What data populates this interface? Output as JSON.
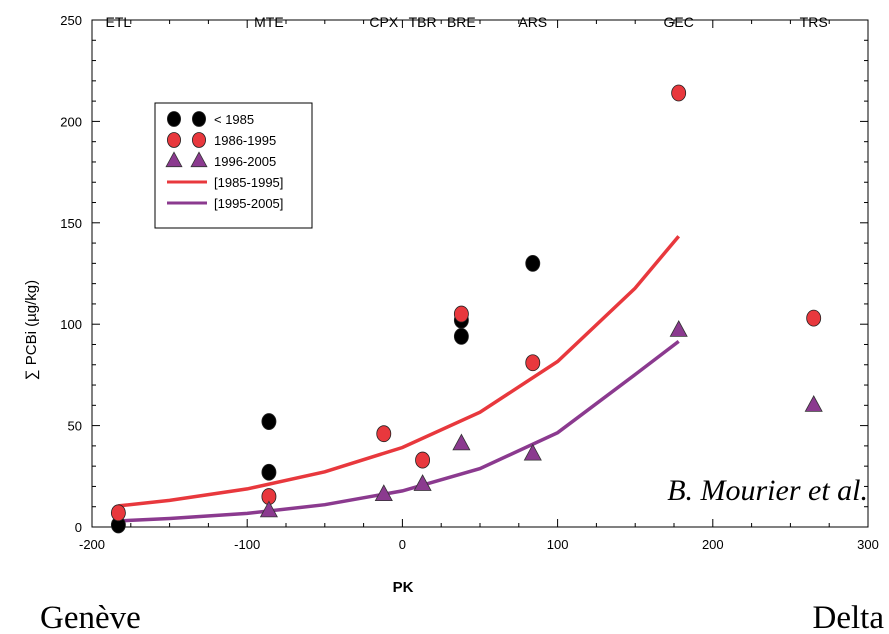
{
  "chart_data": {
    "type": "scatter",
    "xlabel": "PK",
    "ylabel": "∑ PCBi (µg/kg)",
    "xlim": [
      -200,
      300
    ],
    "ylim": [
      0,
      250
    ],
    "x_ticks": [
      -200,
      -100,
      0,
      100,
      200,
      300
    ],
    "y_ticks": [
      0,
      50,
      100,
      150,
      200,
      250
    ],
    "grid": false,
    "legend_position": "top-left",
    "stations": [
      {
        "label": "ETL",
        "x": -183
      },
      {
        "label": "MTE",
        "x": -86
      },
      {
        "label": "CPX",
        "x": -12
      },
      {
        "label": "TBR",
        "x": 13
      },
      {
        "label": "BRE",
        "x": 38
      },
      {
        "label": "ARS",
        "x": 84
      },
      {
        "label": "GEC",
        "x": 178
      },
      {
        "label": "TRS",
        "x": 265
      }
    ],
    "series": [
      {
        "name": "< 1985",
        "marker": "circle",
        "color": "#000000",
        "points": [
          [
            -183,
            1
          ],
          [
            -86,
            52
          ],
          [
            -86,
            27
          ],
          [
            38,
            102
          ],
          [
            38,
            94
          ],
          [
            84,
            130
          ]
        ]
      },
      {
        "name": "1986-1995",
        "marker": "circle",
        "color": "#e8383d",
        "points": [
          [
            -183,
            7
          ],
          [
            -86,
            15
          ],
          [
            -12,
            46
          ],
          [
            13,
            33
          ],
          [
            38,
            105
          ],
          [
            84,
            81
          ],
          [
            178,
            214
          ],
          [
            265,
            103
          ]
        ]
      },
      {
        "name": "1996-2005",
        "marker": "triangle",
        "color": "#8b3a8f",
        "points": [
          [
            -86,
            8
          ],
          [
            -12,
            16
          ],
          [
            13,
            21
          ],
          [
            38,
            41
          ],
          [
            84,
            36
          ],
          [
            178,
            97
          ],
          [
            265,
            60
          ]
        ]
      }
    ],
    "fits": [
      {
        "name": "[1985-1995]",
        "color": "#e8383d",
        "points": [
          [
            -183,
            10.4
          ],
          [
            -150,
            13.1
          ],
          [
            -100,
            18.8
          ],
          [
            -50,
            27.2
          ],
          [
            0,
            39.2
          ],
          [
            50,
            56.6
          ],
          [
            100,
            81.6
          ],
          [
            150,
            117.8
          ],
          [
            178,
            143.4
          ]
        ]
      },
      {
        "name": "[1995-2005]",
        "color": "#8b3a8f",
        "points": [
          [
            -183,
            3
          ],
          [
            -150,
            4.2
          ],
          [
            -100,
            6.7
          ],
          [
            -50,
            11
          ],
          [
            0,
            17.8
          ],
          [
            50,
            28.8
          ],
          [
            100,
            46.5
          ],
          [
            150,
            75.2
          ],
          [
            178,
            91.5
          ]
        ]
      }
    ]
  },
  "annotation": "B. Mourier et al.",
  "places": {
    "left": "Genève",
    "right": "Delta"
  }
}
